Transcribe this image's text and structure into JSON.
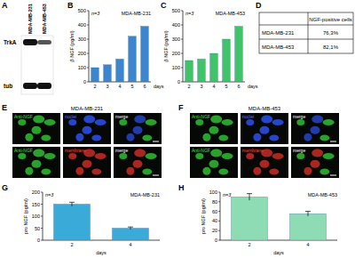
{
  "panels": {
    "labels": [
      "A",
      "B",
      "C",
      "D",
      "E",
      "F",
      "G",
      "H"
    ]
  },
  "blot": {
    "lanes": [
      "MDA-MB-231",
      "MDA-MB-453"
    ],
    "bands": [
      "TrkA",
      "tub"
    ]
  },
  "chart_data": [
    {
      "type": "bar",
      "annotations": [
        "n=3",
        "MDA-MB-231"
      ],
      "x_label": "days",
      "y_label": "β NGF (pg/ml)",
      "categories": [
        "2",
        "3",
        "4",
        "5",
        "6"
      ],
      "values": [
        100,
        120,
        160,
        320,
        390
      ],
      "color": "#3b86cf",
      "ylim": [
        0,
        500
      ],
      "yticks": [
        0,
        100,
        200,
        300,
        400,
        500
      ]
    },
    {
      "type": "bar",
      "annotations": [
        "n=3",
        "MDA-MB-453"
      ],
      "x_label": "days",
      "y_label": "β NGF (pg/ml)",
      "categories": [
        "2",
        "3",
        "4",
        "5",
        "6"
      ],
      "values": [
        150,
        160,
        200,
        300,
        390
      ],
      "color": "#3fc46a",
      "ylim": [
        0,
        500
      ],
      "yticks": [
        0,
        100,
        200,
        300,
        400,
        500
      ]
    },
    {
      "type": "bar",
      "annotations": [
        "n=3",
        "MDA-MB-231"
      ],
      "x_label": "days",
      "y_label": "pro NGF (pg/ml)",
      "categories": [
        "2",
        "4"
      ],
      "values": [
        150,
        50
      ],
      "errors": [
        8,
        5
      ],
      "color": "#3aaad8",
      "ylim": [
        0,
        200
      ],
      "yticks": [
        0,
        50,
        100,
        150,
        200
      ]
    },
    {
      "type": "bar",
      "annotations": [
        "n=3",
        "MDA-MB-453"
      ],
      "x_label": "days",
      "y_label": "pro NGF (pg/ml)",
      "categories": [
        "2",
        "4"
      ],
      "values": [
        90,
        55
      ],
      "errors": [
        7,
        5
      ],
      "color": "#8edcb4",
      "ylim": [
        0,
        100
      ],
      "yticks": [
        0,
        20,
        40,
        60,
        80,
        100
      ]
    }
  ],
  "table": {
    "header": [
      "NGF-positive cells"
    ],
    "rows": [
      [
        "MDA-MB-231",
        "76,3%"
      ],
      [
        "MDA-MB-453",
        "82,1%"
      ]
    ]
  },
  "images": [
    {
      "title": "MDA-MB-231",
      "rows": [
        [
          "Anti-NGF",
          "nuclei",
          "merge"
        ],
        [
          "Anti-NGF",
          "membrane",
          "merge"
        ]
      ]
    },
    {
      "title": "MDA-MB-453",
      "rows": [
        [
          "Anti-NGF",
          "nuclei",
          "merge"
        ],
        [
          "Anti-NGF",
          "membrane",
          "merge"
        ]
      ]
    }
  ]
}
